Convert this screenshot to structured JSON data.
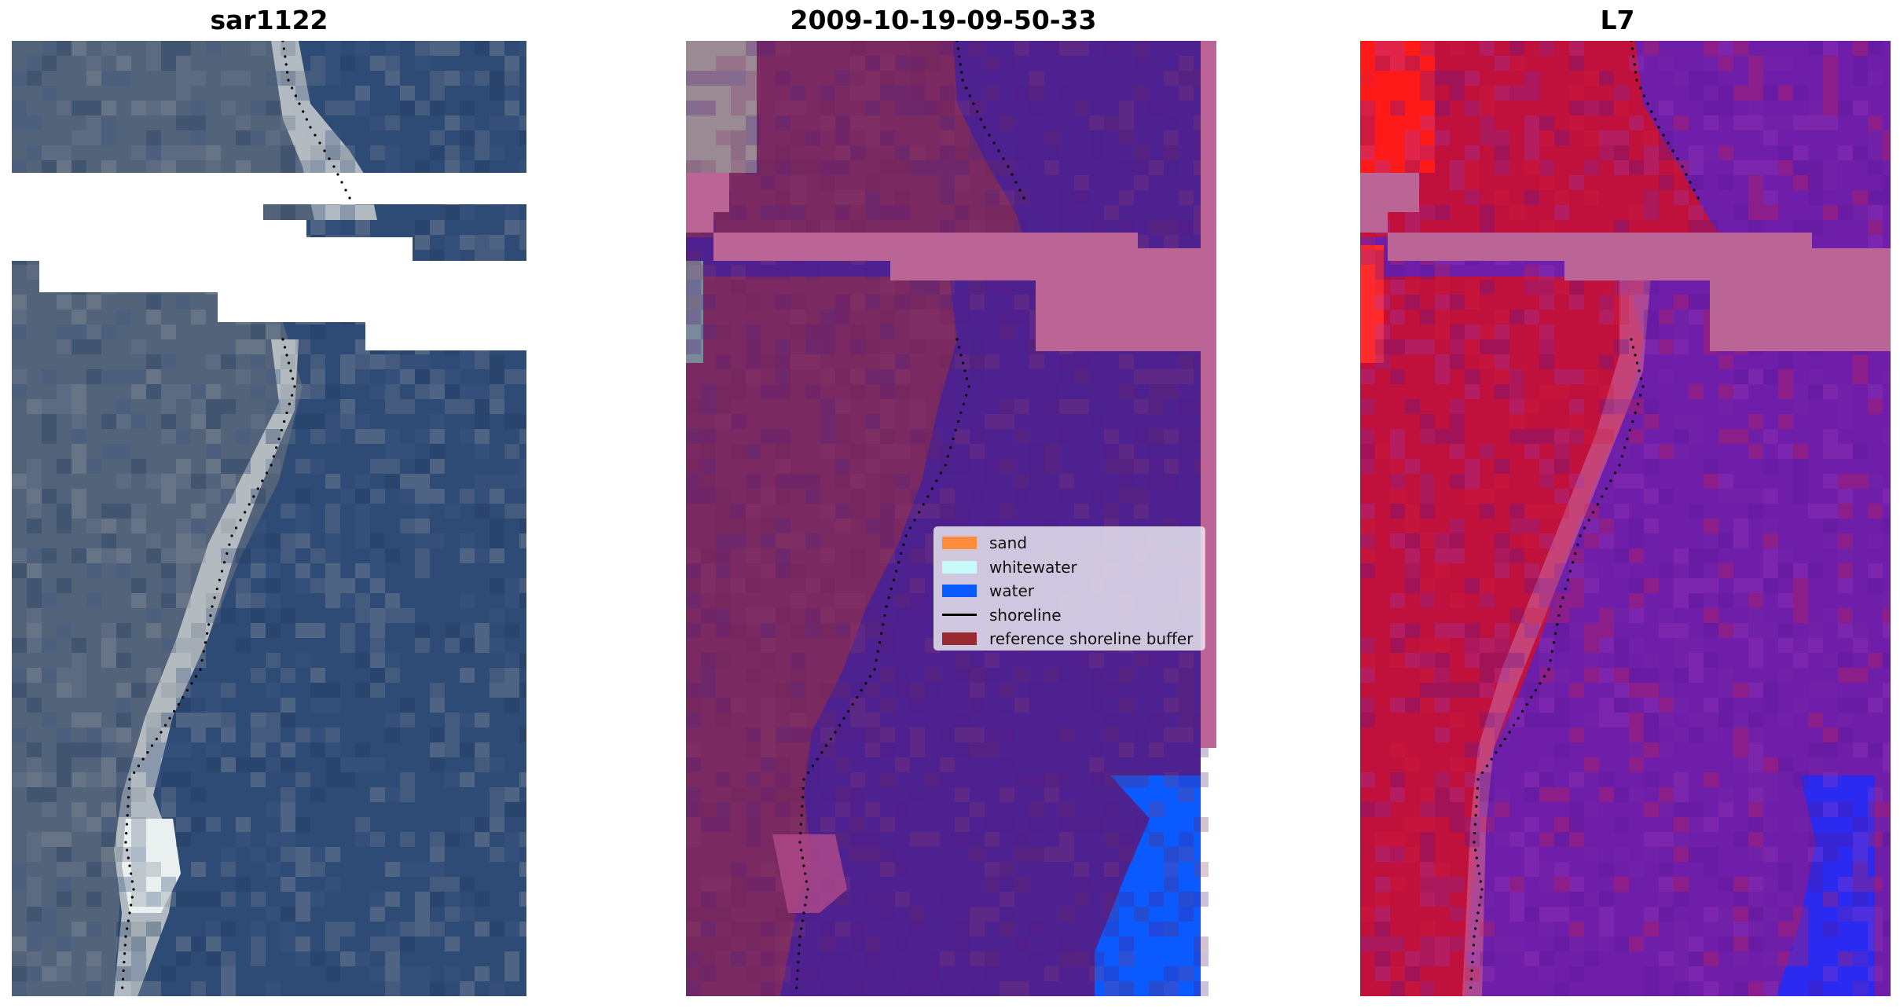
{
  "panels": [
    {
      "title": "sar1122",
      "kind": "rgb"
    },
    {
      "title": "2009-10-19-09-50-33",
      "kind": "classified"
    },
    {
      "title": "L7",
      "kind": "index"
    }
  ],
  "legend": {
    "items": [
      {
        "label": "sand",
        "color": "#ff8c3c",
        "type": "patch"
      },
      {
        "label": "whitewater",
        "color": "#c8fafa",
        "type": "patch"
      },
      {
        "label": "water",
        "color": "#0a5aff",
        "type": "patch"
      },
      {
        "label": "shoreline",
        "color": "#000000",
        "type": "line"
      },
      {
        "label": "reference shoreline buffer",
        "color": "#9a2a32",
        "type": "patch"
      }
    ]
  },
  "colors": {
    "sea_rgb": "#2e4b76",
    "beach_rgb": "#b8c0c4",
    "land_rgb": "#53637a",
    "land_classified": "#7a2a60",
    "water_classified": "#4d2290",
    "cloud_mask": "#bb6496",
    "land_index": "#c0103c",
    "water_index": "#6e1ea8",
    "deep_water_index": "#2a2af0",
    "shoreline": "#000000"
  }
}
